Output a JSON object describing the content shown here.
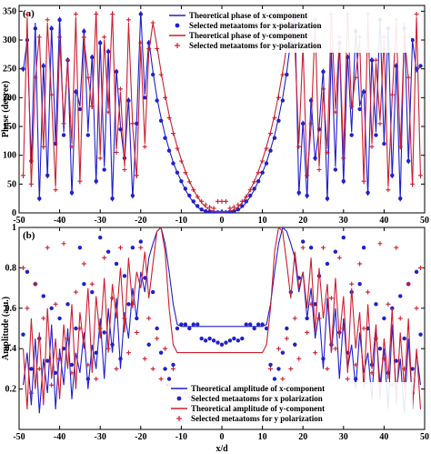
{
  "chart_data": [
    {
      "type": "line",
      "panel_label": "(a)",
      "xlabel": "",
      "ylabel": "Phase (degree)",
      "xlim": [
        -50,
        50
      ],
      "ylim": [
        0,
        360
      ],
      "xticks": [
        "-50",
        "-40",
        "-30",
        "-20",
        "-10",
        "0",
        "10",
        "20",
        "30",
        "40",
        "50"
      ],
      "yticks": [
        "0",
        "50",
        "100",
        "150",
        "200",
        "250",
        "300",
        "350"
      ],
      "legend_position": "top-right",
      "colors": {
        "x": "#2020cc",
        "y": "#cc1f2f"
      },
      "x": [
        -49,
        -48,
        -47,
        -46,
        -45,
        -44,
        -43,
        -42,
        -41,
        -40,
        -39,
        -38,
        -37,
        -36,
        -35,
        -34,
        -33,
        -32,
        -31,
        -30,
        -29,
        -28,
        -27,
        -26,
        -25,
        -24,
        -23,
        -22,
        -21,
        -20,
        -19,
        -18,
        -17,
        -16,
        -15,
        -14,
        -13,
        -12,
        -11,
        -10,
        -9,
        -8,
        -7,
        -6,
        -5,
        -4,
        -3,
        -2,
        -1,
        0,
        1,
        2,
        3,
        4,
        5,
        6,
        7,
        8,
        9,
        10,
        11,
        12,
        13,
        14,
        15,
        16,
        17,
        18,
        19,
        20,
        21,
        22,
        23,
        24,
        25,
        26,
        27,
        28,
        29,
        30,
        31,
        32,
        33,
        34,
        35,
        36,
        37,
        38,
        39,
        40,
        41,
        42,
        43,
        44,
        45,
        46,
        47,
        48,
        49
      ],
      "series": [
        {
          "name": "Theoretical phase of x-component",
          "style": "line",
          "color": "#2020cc",
          "values": [
            245,
            300,
            85,
            330,
            20,
            260,
            60,
            325,
            120,
            340,
            140,
            270,
            30,
            215,
            185,
            320,
            140,
            275,
            50,
            300,
            80,
            285,
            20,
            250,
            150,
            90,
            200,
            25,
            160,
            350,
            205,
            300,
            245,
            200,
            165,
            135,
            110,
            88,
            70,
            55,
            40,
            28,
            18,
            10,
            5,
            2,
            1,
            0,
            0,
            0,
            0,
            1,
            2,
            5,
            10,
            18,
            28,
            40,
            55,
            70,
            88,
            110,
            135,
            165,
            200,
            245,
            300,
            350,
            30,
            160,
            25,
            200,
            90,
            150,
            250,
            20,
            285,
            80,
            300,
            50,
            275,
            140,
            320,
            185,
            215,
            30,
            270,
            140,
            340,
            120,
            325,
            60,
            260,
            20,
            330,
            85,
            300,
            245,
            255
          ]
        },
        {
          "name": "Selected metaatoms for x-polarization",
          "style": "markers-dot",
          "color": "#2020cc",
          "values": [
            250,
            300,
            90,
            320,
            25,
            255,
            65,
            320,
            120,
            335,
            135,
            265,
            35,
            210,
            180,
            315,
            135,
            270,
            55,
            295,
            75,
            280,
            25,
            245,
            145,
            95,
            195,
            30,
            155,
            345,
            200,
            295,
            240,
            195,
            160,
            130,
            108,
            86,
            70,
            55,
            42,
            30,
            20,
            12,
            6,
            3,
            2,
            1,
            1,
            1,
            1,
            2,
            3,
            6,
            12,
            20,
            30,
            42,
            55,
            70,
            86,
            108,
            130,
            160,
            195,
            240,
            295,
            345,
            35,
            155,
            30,
            195,
            95,
            145,
            245,
            25,
            280,
            75,
            295,
            55,
            270,
            135,
            315,
            180,
            210,
            35,
            265,
            135,
            335,
            120,
            320,
            65,
            255,
            25,
            320,
            90,
            300,
            250,
            255
          ]
        },
        {
          "name": "Theoretical phase of y-component",
          "style": "line",
          "color": "#cc1f2f",
          "values": [
            60,
            340,
            45,
            230,
            310,
            110,
            330,
            200,
            45,
            300,
            160,
            260,
            120,
            340,
            50,
            300,
            240,
            180,
            350,
            100,
            300,
            180,
            350,
            110,
            210,
            80,
            330,
            150,
            60,
            290,
            120,
            280,
            330,
            290,
            245,
            205,
            170,
            140,
            115,
            92,
            72,
            55,
            40,
            28,
            18,
            10,
            5,
            3,
            2,
            2,
            2,
            3,
            5,
            10,
            18,
            28,
            40,
            55,
            72,
            92,
            115,
            140,
            170,
            205,
            245,
            290,
            330,
            290,
            120,
            290,
            60,
            150,
            330,
            80,
            210,
            110,
            350,
            180,
            300,
            100,
            350,
            180,
            240,
            300,
            50,
            340,
            120,
            260,
            160,
            300,
            45,
            200,
            330,
            110,
            310,
            230,
            45,
            340,
            60
          ]
        },
        {
          "name": "Selected metaatoms for y-polarization",
          "style": "markers-plus",
          "color": "#cc1f2f",
          "values": [
            65,
            345,
            50,
            235,
            305,
            115,
            335,
            205,
            40,
            305,
            155,
            265,
            115,
            345,
            55,
            305,
            235,
            185,
            345,
            95,
            305,
            175,
            345,
            105,
            215,
            75,
            335,
            155,
            65,
            295,
            115,
            285,
            330,
            285,
            240,
            200,
            165,
            138,
            112,
            90,
            70,
            54,
            40,
            28,
            20,
            14,
            10,
            8,
            20,
            20,
            20,
            8,
            10,
            14,
            20,
            28,
            40,
            54,
            70,
            90,
            112,
            138,
            165,
            200,
            240,
            285,
            330,
            285,
            115,
            295,
            65,
            155,
            335,
            75,
            215,
            105,
            345,
            175,
            305,
            95,
            345,
            185,
            235,
            305,
            55,
            345,
            115,
            265,
            155,
            305,
            40,
            205,
            335,
            115,
            305,
            235,
            50,
            345,
            65
          ]
        }
      ]
    },
    {
      "type": "line",
      "panel_label": "(b)",
      "xlabel": "x/d",
      "ylabel": "Amplitude (a.u.)",
      "xlim": [
        -50,
        50
      ],
      "ylim": [
        0,
        1
      ],
      "xticks": [
        "-50",
        "-40",
        "-30",
        "-20",
        "-10",
        "0",
        "10",
        "20",
        "30",
        "40",
        "50"
      ],
      "yticks": [
        "0.2",
        "0.4",
        "0.6",
        "0.8",
        "1"
      ],
      "legend_position": "bottom-center",
      "colors": {
        "x": "#2020cc",
        "y": "#cc1f2f"
      },
      "x": [
        -49,
        -48,
        -47,
        -46,
        -45,
        -44,
        -43,
        -42,
        -41,
        -40,
        -39,
        -38,
        -37,
        -36,
        -35,
        -34,
        -33,
        -32,
        -31,
        -30,
        -29,
        -28,
        -27,
        -26,
        -25,
        -24,
        -23,
        -22,
        -21,
        -20,
        -19,
        -18,
        -17,
        -16,
        -15,
        -14,
        -13,
        -12,
        -11,
        -10,
        -9,
        -8,
        -7,
        -6,
        -5,
        -4,
        -3,
        -2,
        -1,
        0,
        1,
        2,
        3,
        4,
        5,
        6,
        7,
        8,
        9,
        10,
        11,
        12,
        13,
        14,
        15,
        16,
        17,
        18,
        19,
        20,
        21,
        22,
        23,
        24,
        25,
        26,
        27,
        28,
        29,
        30,
        31,
        32,
        33,
        34,
        35,
        36,
        37,
        38,
        39,
        40,
        41,
        42,
        43,
        44,
        45,
        46,
        47,
        48,
        49
      ],
      "series": [
        {
          "name": "Theoretical amplitude of x-component",
          "style": "line",
          "color": "#2020cc",
          "values": [
            0.22,
            0.38,
            0.12,
            0.45,
            0.08,
            0.35,
            0.18,
            0.52,
            0.1,
            0.4,
            0.22,
            0.5,
            0.15,
            0.38,
            0.28,
            0.48,
            0.2,
            0.42,
            0.3,
            0.55,
            0.25,
            0.6,
            0.38,
            0.65,
            0.3,
            0.58,
            0.45,
            0.7,
            0.55,
            0.78,
            0.68,
            0.85,
            0.92,
            0.98,
            1.0,
            0.92,
            0.78,
            0.62,
            0.52,
            0.51,
            0.51,
            0.51,
            0.51,
            0.51,
            0.51,
            0.51,
            0.51,
            0.51,
            0.51,
            0.51,
            0.51,
            0.51,
            0.51,
            0.51,
            0.51,
            0.51,
            0.51,
            0.51,
            0.51,
            0.51,
            0.52,
            0.62,
            0.78,
            0.92,
            1.0,
            0.98,
            0.92,
            0.85,
            0.68,
            0.78,
            0.55,
            0.7,
            0.45,
            0.58,
            0.3,
            0.65,
            0.38,
            0.6,
            0.25,
            0.55,
            0.3,
            0.42,
            0.2,
            0.48,
            0.28,
            0.38,
            0.15,
            0.5,
            0.22,
            0.4,
            0.1,
            0.52,
            0.18,
            0.35,
            0.08,
            0.45,
            0.12,
            0.38,
            0.22
          ]
        },
        {
          "name": "Selected metaatoms for x polarization",
          "style": "markers-dot",
          "color": "#2020cc",
          "values": [
            0.47,
            0.78,
            0.3,
            0.72,
            0.45,
            0.66,
            0.34,
            0.6,
            0.28,
            0.55,
            0.4,
            0.62,
            0.32,
            0.5,
            0.9,
            0.72,
            0.25,
            0.68,
            0.38,
            0.95,
            0.48,
            0.88,
            0.42,
            0.82,
            0.35,
            0.76,
            0.62,
            0.9,
            0.55,
            0.93,
            0.75,
            0.42,
            0.68,
            0.5,
            0.38,
            0.3,
            0.25,
            0.32,
            0.5,
            0.52,
            0.52,
            0.5,
            0.52,
            0.52,
            0.45,
            0.44,
            0.45,
            0.44,
            0.43,
            0.42,
            0.43,
            0.44,
            0.45,
            0.44,
            0.45,
            0.52,
            0.52,
            0.5,
            0.52,
            0.52,
            0.5,
            0.32,
            0.25,
            0.3,
            0.38,
            0.5,
            0.68,
            0.42,
            0.75,
            0.93,
            0.55,
            0.9,
            0.62,
            0.76,
            0.35,
            0.82,
            0.42,
            0.88,
            0.48,
            0.95,
            0.38,
            0.68,
            0.25,
            0.72,
            0.9,
            0.5,
            0.32,
            0.62,
            0.4,
            0.55,
            0.28,
            0.6,
            0.34,
            0.66,
            0.45,
            0.72,
            0.3,
            0.78,
            0.47
          ]
        },
        {
          "name": "Theoretical amplitude of y-component",
          "style": "line",
          "color": "#cc1f2f",
          "values": [
            0.4,
            0.1,
            0.55,
            0.2,
            0.48,
            0.12,
            0.6,
            0.25,
            0.45,
            0.15,
            0.52,
            0.3,
            0.62,
            0.2,
            0.58,
            0.4,
            0.7,
            0.28,
            0.66,
            0.45,
            0.75,
            0.38,
            0.72,
            0.55,
            0.8,
            0.48,
            0.85,
            0.6,
            0.78,
            0.7,
            0.88,
            0.65,
            0.82,
            0.98,
            1.0,
            0.88,
            0.6,
            0.42,
            0.38,
            0.38,
            0.38,
            0.38,
            0.38,
            0.38,
            0.38,
            0.38,
            0.38,
            0.38,
            0.38,
            0.38,
            0.38,
            0.38,
            0.38,
            0.38,
            0.38,
            0.38,
            0.38,
            0.38,
            0.38,
            0.38,
            0.42,
            0.6,
            0.88,
            1.0,
            0.98,
            0.82,
            0.65,
            0.88,
            0.7,
            0.78,
            0.6,
            0.85,
            0.48,
            0.8,
            0.55,
            0.72,
            0.38,
            0.75,
            0.45,
            0.66,
            0.28,
            0.7,
            0.4,
            0.58,
            0.2,
            0.62,
            0.3,
            0.52,
            0.15,
            0.45,
            0.25,
            0.6,
            0.12,
            0.48,
            0.2,
            0.55,
            0.1,
            0.4,
            0.1
          ]
        },
        {
          "name": "Selected metaatoms for y polarization",
          "style": "markers-plus",
          "color": "#cc1f2f",
          "values": [
            0.8,
            0.6,
            0.18,
            0.72,
            0.3,
            0.55,
            0.9,
            0.22,
            0.62,
            0.35,
            0.92,
            0.45,
            0.28,
            0.68,
            0.5,
            0.82,
            0.32,
            0.72,
            0.25,
            0.5,
            0.85,
            0.4,
            0.65,
            0.3,
            0.9,
            0.55,
            0.38,
            0.62,
            0.48,
            0.9,
            0.35,
            0.55,
            0.3,
            0.45,
            0.25,
            0.4,
            0.22,
            0.3,
            0.2,
            0.2,
            0.18,
            0.16,
            0.15,
            0.14,
            0.13,
            0.12,
            0.1,
            0.08,
            0.06,
            0.05,
            0.06,
            0.08,
            0.1,
            0.12,
            0.13,
            0.14,
            0.15,
            0.16,
            0.18,
            0.2,
            0.2,
            0.3,
            0.22,
            0.4,
            0.25,
            0.45,
            0.3,
            0.55,
            0.35,
            0.9,
            0.48,
            0.62,
            0.38,
            0.55,
            0.9,
            0.3,
            0.65,
            0.4,
            0.85,
            0.5,
            0.25,
            0.72,
            0.32,
            0.82,
            0.5,
            0.68,
            0.28,
            0.45,
            0.92,
            0.35,
            0.62,
            0.22,
            0.9,
            0.55,
            0.3,
            0.72,
            0.18,
            0.6,
            0.8
          ]
        }
      ]
    }
  ]
}
